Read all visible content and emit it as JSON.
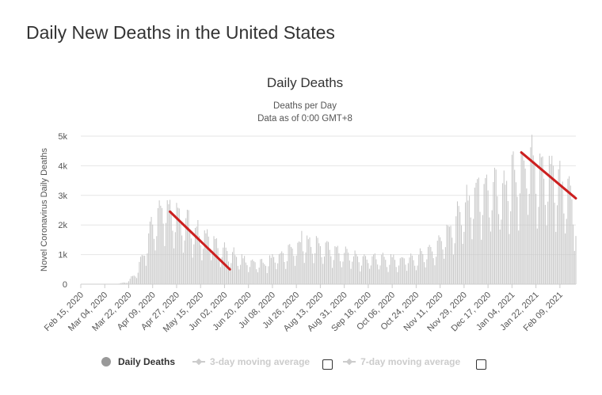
{
  "page": {
    "title": "Daily New Deaths in the United States"
  },
  "legend": {
    "daily_label": "Daily Deaths",
    "ma3_label": "3-day moving average",
    "ma7_label": "7-day moving average"
  },
  "colors": {
    "bars": "#c8c8c8",
    "trend": "#cc1f1f",
    "grid": "#e6e6e6"
  },
  "chart_data": {
    "type": "bar",
    "title": "Daily Deaths",
    "subtitle_lines": [
      "Deaths per Day",
      "Data as of 0:00 GMT+8"
    ],
    "ylabel": "Novel Coronavirus Daily Deaths",
    "xlabel": "",
    "ylim": [
      0,
      5000
    ],
    "yticks": [
      0,
      1000,
      2000,
      3000,
      4000,
      5000
    ],
    "ytick_labels": [
      "0",
      "1k",
      "2k",
      "3k",
      "4k",
      "5k"
    ],
    "x_start": "2020-02-15",
    "x_end": "2021-02-21",
    "xtick_labels": [
      "Feb 15, 2020",
      "Mar 04, 2020",
      "Mar 22, 2020",
      "Apr 09, 2020",
      "Apr 27, 2020",
      "May 15, 2020",
      "Jun 02, 2020",
      "Jun 20, 2020",
      "Jul 08, 2020",
      "Jul 26, 2020",
      "Aug 13, 2020",
      "Aug 31, 2020",
      "Sep 18, 2020",
      "Oct 06, 2020",
      "Oct 24, 2020",
      "Nov 11, 2020",
      "Nov 29, 2020",
      "Dec 17, 2020",
      "Jan 04, 2021",
      "Jan 22, 2021",
      "Feb 09, 2021"
    ],
    "grid": true,
    "legend_position": "bottom",
    "anchors": [
      [
        "2020-02-15",
        0
      ],
      [
        "2020-03-06",
        0
      ],
      [
        "2020-03-13",
        10
      ],
      [
        "2020-03-20",
        60
      ],
      [
        "2020-03-27",
        300
      ],
      [
        "2020-04-01",
        850
      ],
      [
        "2020-04-06",
        1500
      ],
      [
        "2020-04-10",
        2050
      ],
      [
        "2020-04-14",
        2300
      ],
      [
        "2020-04-17",
        2500
      ],
      [
        "2020-04-21",
        2400
      ],
      [
        "2020-04-25",
        2200
      ],
      [
        "2020-04-30",
        2050
      ],
      [
        "2020-05-05",
        1900
      ],
      [
        "2020-05-12",
        1700
      ],
      [
        "2020-05-20",
        1450
      ],
      [
        "2020-05-27",
        1250
      ],
      [
        "2020-06-03",
        1050
      ],
      [
        "2020-06-10",
        900
      ],
      [
        "2020-06-17",
        750
      ],
      [
        "2020-06-24",
        700
      ],
      [
        "2020-07-01",
        680
      ],
      [
        "2020-07-08",
        800
      ],
      [
        "2020-07-15",
        900
      ],
      [
        "2020-07-22",
        1100
      ],
      [
        "2020-07-29",
        1250
      ],
      [
        "2020-08-05",
        1300
      ],
      [
        "2020-08-12",
        1250
      ],
      [
        "2020-08-19",
        1150
      ],
      [
        "2020-08-26",
        1050
      ],
      [
        "2020-09-02",
        950
      ],
      [
        "2020-09-09",
        850
      ],
      [
        "2020-09-16",
        880
      ],
      [
        "2020-09-23",
        850
      ],
      [
        "2020-09-30",
        800
      ],
      [
        "2020-10-07",
        780
      ],
      [
        "2020-10-14",
        800
      ],
      [
        "2020-10-21",
        850
      ],
      [
        "2020-10-28",
        900
      ],
      [
        "2020-11-04",
        1050
      ],
      [
        "2020-11-11",
        1300
      ],
      [
        "2020-11-18",
        1650
      ],
      [
        "2020-11-25",
        2150
      ],
      [
        "2020-12-02",
        2600
      ],
      [
        "2020-12-09",
        2800
      ],
      [
        "2020-12-16",
        2950
      ],
      [
        "2020-12-23",
        3050
      ],
      [
        "2020-12-30",
        3150
      ],
      [
        "2021-01-06",
        3500
      ],
      [
        "2021-01-12",
        3800
      ],
      [
        "2021-01-16",
        3900
      ],
      [
        "2021-01-20",
        3800
      ],
      [
        "2021-01-27",
        3600
      ],
      [
        "2021-02-03",
        3400
      ],
      [
        "2021-02-10",
        3100
      ],
      [
        "2021-02-17",
        2700
      ],
      [
        "2021-02-21",
        2000
      ]
    ],
    "peaks": [
      [
        "2020-04-15",
        2650
      ],
      [
        "2020-04-21",
        2700
      ],
      [
        "2020-05-06",
        2500
      ],
      [
        "2020-05-27",
        1550
      ],
      [
        "2020-07-30",
        1800
      ],
      [
        "2020-12-10",
        3600
      ],
      [
        "2020-12-16",
        3700
      ],
      [
        "2021-01-12",
        4450
      ],
      [
        "2021-01-20",
        4350
      ],
      [
        "2021-02-04",
        4000
      ]
    ],
    "trend_lines": [
      {
        "from": [
          "2020-04-22",
          2450
        ],
        "to": [
          "2020-06-06",
          500
        ]
      },
      {
        "from": [
          "2021-01-11",
          4450
        ],
        "to": [
          "2021-02-21",
          2900
        ]
      }
    ]
  }
}
